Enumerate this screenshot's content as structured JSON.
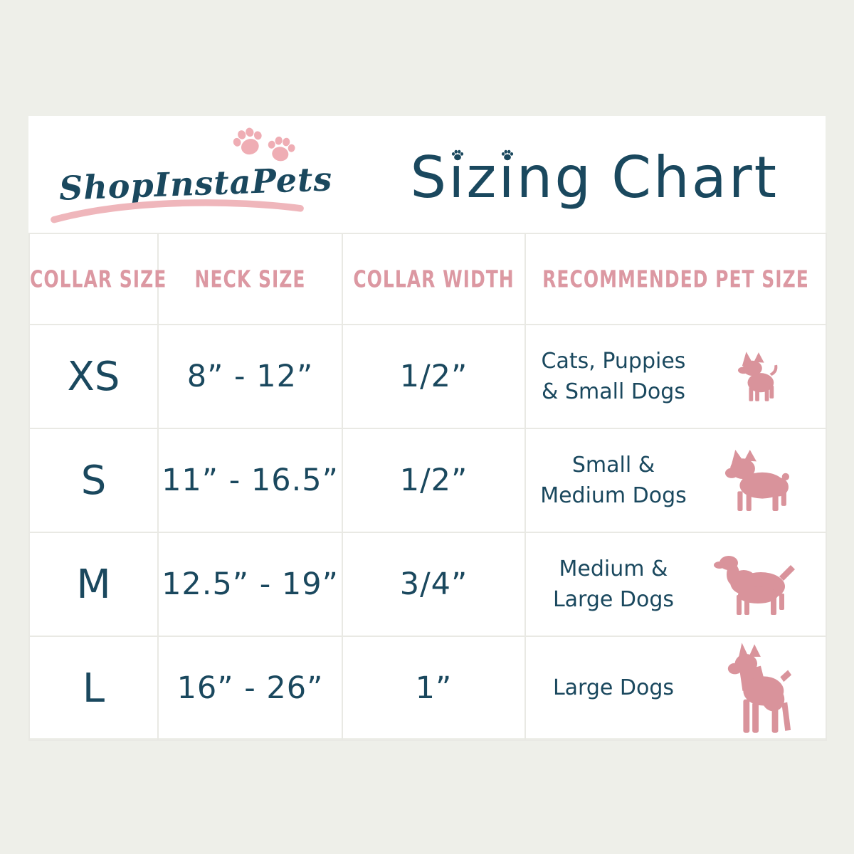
{
  "logo": {
    "brand": "ShopInstaPets"
  },
  "title": "Sizing Chart",
  "table": {
    "headers": [
      "COLLAR SIZE",
      "NECK SIZE",
      "COLLAR WIDTH",
      "RECOMMENDED PET SIZE"
    ],
    "rows": [
      {
        "collar_size": "XS",
        "neck_size": "8” - 12”",
        "collar_width": "1/2”",
        "pet_size_lines": [
          "Cats, Puppies",
          "& Small Dogs"
        ],
        "icon": "chihuahua-silhouette-icon"
      },
      {
        "collar_size": "S",
        "neck_size": "11” - 16.5”",
        "collar_width": "1/2”",
        "pet_size_lines": [
          "Small &",
          "Medium Dogs"
        ],
        "icon": "boston-terrier-silhouette-icon"
      },
      {
        "collar_size": "M",
        "neck_size": "12.5” - 19”",
        "collar_width": "3/4”",
        "pet_size_lines": [
          "Medium &",
          "Large Dogs"
        ],
        "icon": "spaniel-silhouette-icon"
      },
      {
        "collar_size": "L",
        "neck_size": "16” - 26”",
        "collar_width": "1”",
        "pet_size_lines": [
          "Large Dogs"
        ],
        "icon": "boxer-silhouette-icon"
      }
    ]
  },
  "colors": {
    "background": "#eeefe9",
    "card": "#ffffff",
    "border": "#e9e9e4",
    "teal_text": "#1a485e",
    "pink_header_text": "#dc98a2",
    "pink_silhouette": "#d9939b",
    "pink_accent": "#efb0b6"
  },
  "chart_data": {
    "type": "table",
    "title": "Sizing Chart",
    "columns": [
      "COLLAR SIZE",
      "NECK SIZE",
      "COLLAR WIDTH",
      "RECOMMENDED PET SIZE"
    ],
    "rows": [
      [
        "XS",
        "8\" - 12\"",
        "1/2\"",
        "Cats, Puppies & Small Dogs"
      ],
      [
        "S",
        "11\" - 16.5\"",
        "1/2\"",
        "Small & Medium Dogs"
      ],
      [
        "M",
        "12.5\" - 19\"",
        "3/4\"",
        "Medium & Large Dogs"
      ],
      [
        "L",
        "16\" - 26\"",
        "1\"",
        "Large Dogs"
      ]
    ]
  }
}
